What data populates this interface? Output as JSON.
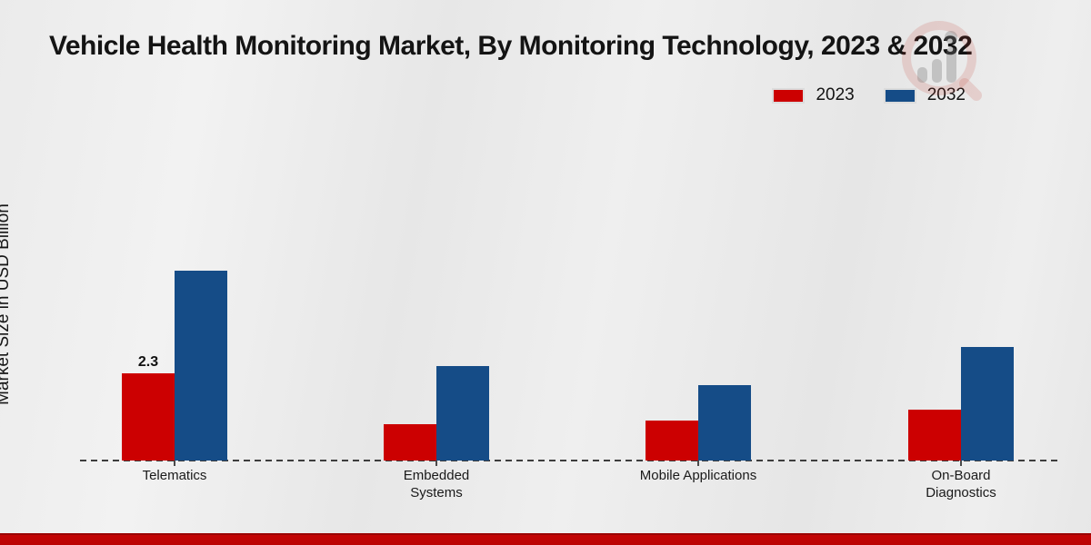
{
  "title": "Vehicle Health Monitoring Market, By Monitoring Technology, 2023 & 2032",
  "ylabel": "Market Size in USD Billion",
  "legend": {
    "items": [
      {
        "label": "2023",
        "color": "#cc0001"
      },
      {
        "label": "2032",
        "color": "#154c87"
      }
    ]
  },
  "colors": {
    "series_2023": "#cc0001",
    "series_2032": "#154c87",
    "background": "#eaeaea",
    "baseline": "#3d3d3d",
    "footer_band": "#c30404",
    "text": "#141414",
    "watermark_red": "#c0392b",
    "watermark_gray": "#8a8a8a"
  },
  "watermark_icon": "magnifier-bar-chart-logo",
  "chart_data": {
    "type": "bar",
    "title": "Vehicle Health Monitoring Market, By Monitoring Technology, 2023 & 2032",
    "xlabel": "",
    "ylabel": "Market Size in USD Billion",
    "categories": [
      "Telematics",
      "Embedded Systems",
      "Mobile Applications",
      "On-Board Diagnostics"
    ],
    "series": [
      {
        "name": "2023",
        "color": "#cc0001",
        "values": [
          2.3,
          0.95,
          1.05,
          1.35
        ]
      },
      {
        "name": "2032",
        "color": "#154c87",
        "values": [
          5.0,
          2.5,
          2.0,
          3.0
        ]
      }
    ],
    "annotations": [
      {
        "series": 0,
        "category": 0,
        "text": "2.3"
      }
    ],
    "ylim": [
      0,
      5.5
    ],
    "grid": false,
    "y_axis_ticks_visible": false,
    "baseline_style": "dashed",
    "legend_position": "top-right"
  }
}
